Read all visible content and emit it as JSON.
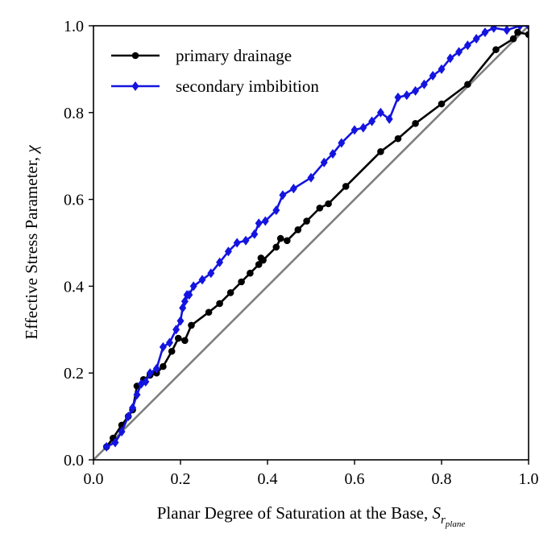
{
  "chart_data": {
    "type": "line",
    "title": "",
    "xlabel": "Planar Degree of Saturation at the Base, ",
    "xlabel_symbol": "S",
    "xlabel_sub": "r",
    "xlabel_subsub": "plane",
    "ylabel": "Effective Stress Parameter, ",
    "ylabel_symbol": "χ",
    "xlim": [
      0.0,
      1.0
    ],
    "ylim": [
      0.0,
      1.0
    ],
    "xticks": [
      0.0,
      0.2,
      0.4,
      0.6,
      0.8,
      1.0
    ],
    "yticks": [
      0.0,
      0.2,
      0.4,
      0.6,
      0.8,
      1.0
    ],
    "xtick_labels": [
      "0.0",
      "0.2",
      "0.4",
      "0.6",
      "0.8",
      "1.0"
    ],
    "ytick_labels": [
      "0.0",
      "0.2",
      "0.4",
      "0.6",
      "0.8",
      "1.0"
    ],
    "grid": false,
    "legend_position": "top-left",
    "reference_line": {
      "x": [
        0.0,
        1.0
      ],
      "y": [
        0.0,
        1.0
      ],
      "color": "#808080"
    },
    "series": [
      {
        "name": "primary drainage",
        "color": "#000000",
        "marker": "circle",
        "x": [
          0.03,
          0.045,
          0.065,
          0.08,
          0.09,
          0.1,
          0.115,
          0.13,
          0.145,
          0.16,
          0.18,
          0.195,
          0.21,
          0.225,
          0.265,
          0.29,
          0.315,
          0.34,
          0.36,
          0.38,
          0.385,
          0.39,
          0.42,
          0.43,
          0.445,
          0.47,
          0.49,
          0.52,
          0.54,
          0.58,
          0.66,
          0.7,
          0.74,
          0.8,
          0.86,
          0.925,
          0.965,
          0.975,
          1.0
        ],
        "y": [
          0.03,
          0.05,
          0.08,
          0.1,
          0.115,
          0.17,
          0.185,
          0.195,
          0.2,
          0.215,
          0.25,
          0.28,
          0.275,
          0.31,
          0.34,
          0.36,
          0.385,
          0.41,
          0.43,
          0.45,
          0.465,
          0.46,
          0.49,
          0.51,
          0.505,
          0.53,
          0.55,
          0.58,
          0.59,
          0.63,
          0.71,
          0.74,
          0.775,
          0.82,
          0.865,
          0.945,
          0.97,
          0.985,
          0.98
        ]
      },
      {
        "name": "secondary imbibition",
        "color": "#1414e0",
        "marker": "diamond",
        "x": [
          0.03,
          0.05,
          0.065,
          0.08,
          0.09,
          0.1,
          0.11,
          0.12,
          0.13,
          0.145,
          0.16,
          0.175,
          0.19,
          0.2,
          0.205,
          0.21,
          0.215,
          0.22,
          0.23,
          0.25,
          0.27,
          0.29,
          0.31,
          0.33,
          0.35,
          0.37,
          0.38,
          0.395,
          0.42,
          0.435,
          0.46,
          0.5,
          0.53,
          0.55,
          0.57,
          0.6,
          0.62,
          0.64,
          0.66,
          0.68,
          0.7,
          0.72,
          0.74,
          0.76,
          0.78,
          0.8,
          0.82,
          0.84,
          0.86,
          0.88,
          0.9,
          0.92,
          0.95,
          0.98,
          1.0
        ],
        "y": [
          0.03,
          0.04,
          0.065,
          0.1,
          0.12,
          0.15,
          0.175,
          0.18,
          0.2,
          0.21,
          0.26,
          0.27,
          0.3,
          0.32,
          0.35,
          0.365,
          0.38,
          0.38,
          0.4,
          0.415,
          0.43,
          0.455,
          0.48,
          0.5,
          0.505,
          0.52,
          0.545,
          0.55,
          0.575,
          0.61,
          0.625,
          0.65,
          0.685,
          0.705,
          0.73,
          0.76,
          0.765,
          0.78,
          0.8,
          0.785,
          0.835,
          0.84,
          0.85,
          0.865,
          0.885,
          0.9,
          0.925,
          0.94,
          0.955,
          0.97,
          0.985,
          0.995,
          0.99,
          1.0,
          1.0
        ]
      }
    ]
  }
}
